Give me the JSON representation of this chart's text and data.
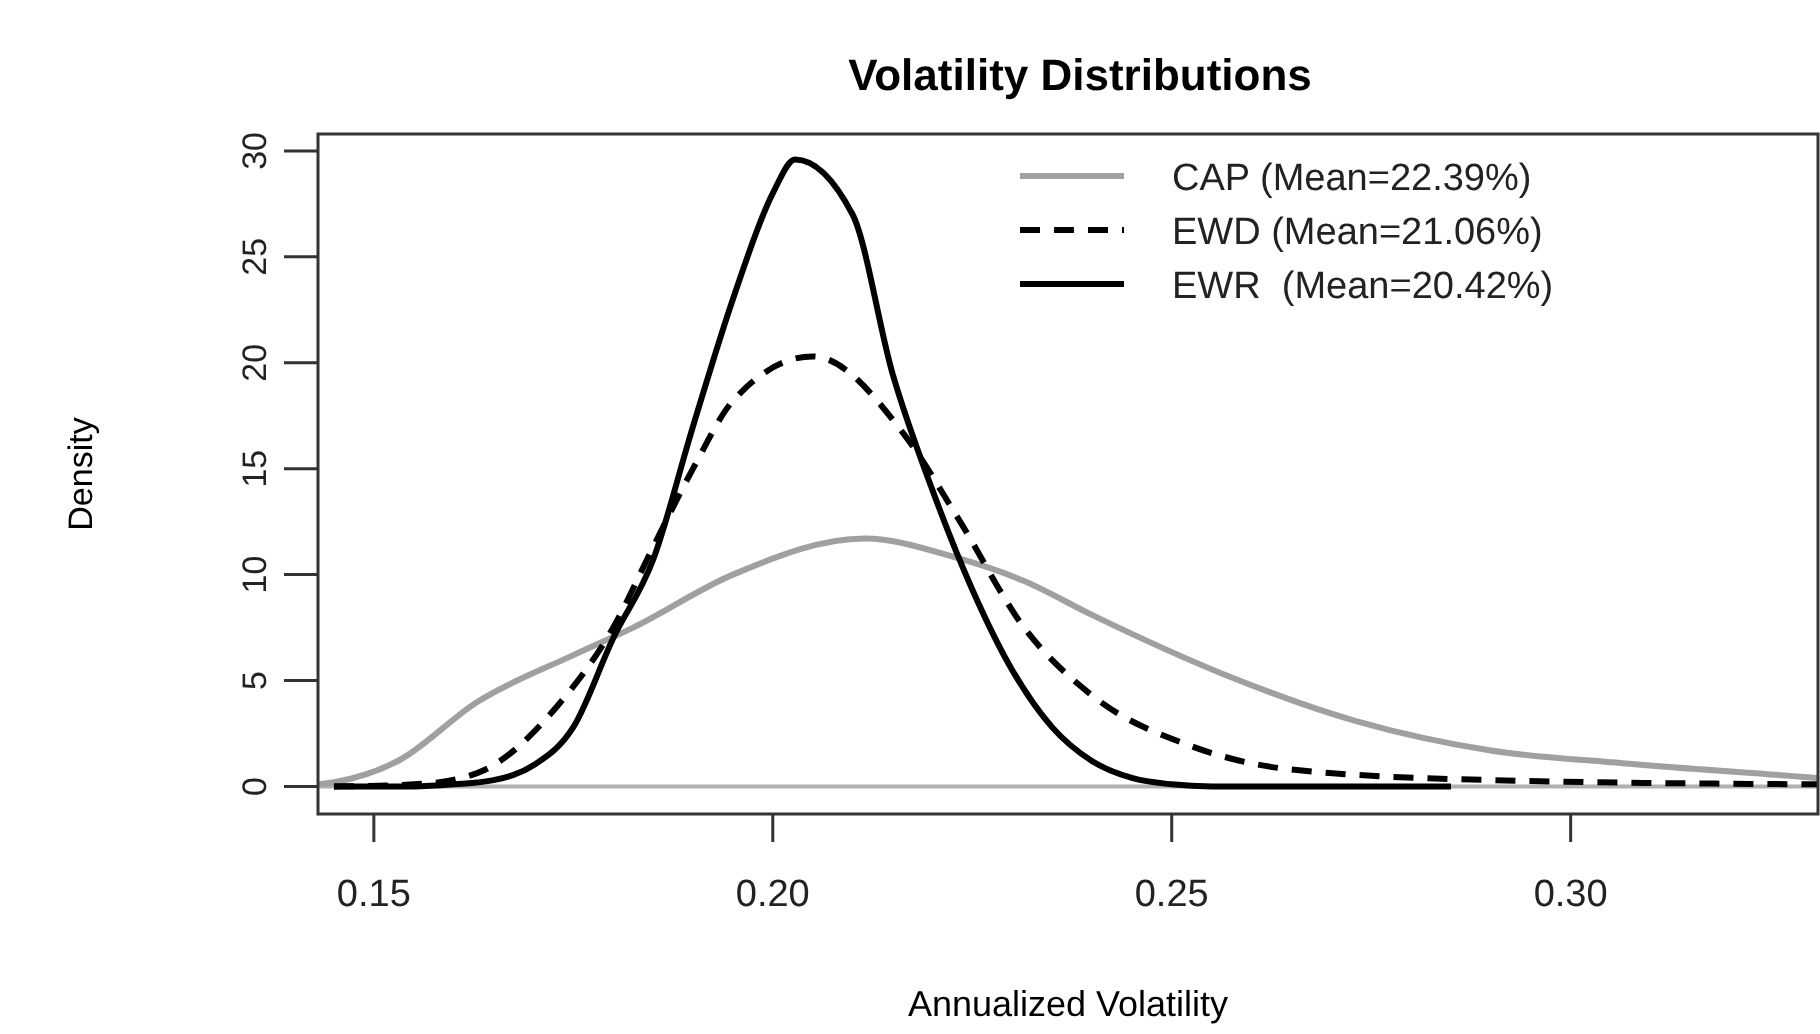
{
  "chart_data": {
    "type": "line",
    "title": "Volatility Distributions",
    "xlabel": "Annualized Volatility",
    "ylabel": "Density",
    "xlim": [
      0.143,
      0.331
    ],
    "ylim": [
      -1.3,
      30.8
    ],
    "xticks": [
      {
        "value": 0.15,
        "label": "0.15"
      },
      {
        "value": 0.2,
        "label": "0.20"
      },
      {
        "value": 0.25,
        "label": "0.25"
      },
      {
        "value": 0.3,
        "label": "0.30"
      }
    ],
    "yticks": [
      0,
      5,
      10,
      15,
      20,
      25,
      30
    ],
    "grid": false,
    "legend": "top right",
    "marker": "none",
    "ref_lines": [
      {
        "axis": "y",
        "value": 0,
        "color": "#b0b0b0"
      }
    ],
    "series": [
      {
        "name": "CAP (Mean=22.39%)",
        "color": "#a0a0a0",
        "line_style": "solid",
        "x": [
          0.143,
          0.145,
          0.153,
          0.163,
          0.175,
          0.1825,
          0.195,
          0.2115,
          0.223,
          0.2315,
          0.24,
          0.2565,
          0.273,
          0.29,
          0.3065,
          0.3275,
          0.331
        ],
        "values": [
          0.1,
          0.2,
          1.2,
          4,
          6.2,
          7.5,
          10,
          11.7,
          10.8,
          9.7,
          8.1,
          5.3,
          3.1,
          1.7,
          1.1,
          0.5,
          0.4
        ]
      },
      {
        "name": "EWD (Mean=21.06%)",
        "color": "#000000",
        "line_style": "dashed",
        "x": [
          0.145,
          0.155,
          0.161,
          0.164,
          0.173,
          0.18,
          0.185,
          0.19,
          0.195,
          0.205,
          0.2165,
          0.223,
          0.2315,
          0.24,
          0.2525,
          0.265,
          0.29,
          0.331
        ],
        "values": [
          0,
          0.1,
          0.4,
          0.8,
          3.8,
          7.5,
          11.3,
          15,
          18.2,
          20.3,
          16.6,
          12.8,
          7.5,
          4.3,
          1.9,
          0.8,
          0.3,
          0.1
        ]
      },
      {
        "name": "EWR  (Mean=20.42%)",
        "color": "#000000",
        "line_style": "solid",
        "x": [
          0.145,
          0.155,
          0.16,
          0.165,
          0.17,
          0.175,
          0.18,
          0.185,
          0.19,
          0.195,
          0.2,
          0.2028,
          0.21,
          0.215,
          0.22,
          0.225,
          0.23,
          0.235,
          0.24,
          0.245,
          0.25,
          0.255,
          0.285
        ],
        "values": [
          0,
          0,
          0.1,
          0.3,
          1,
          2.8,
          7,
          10.7,
          17,
          23,
          28,
          29.6,
          27,
          19.5,
          14,
          9.3,
          5.5,
          2.8,
          1.2,
          0.4,
          0.1,
          0,
          0
        ]
      }
    ]
  }
}
